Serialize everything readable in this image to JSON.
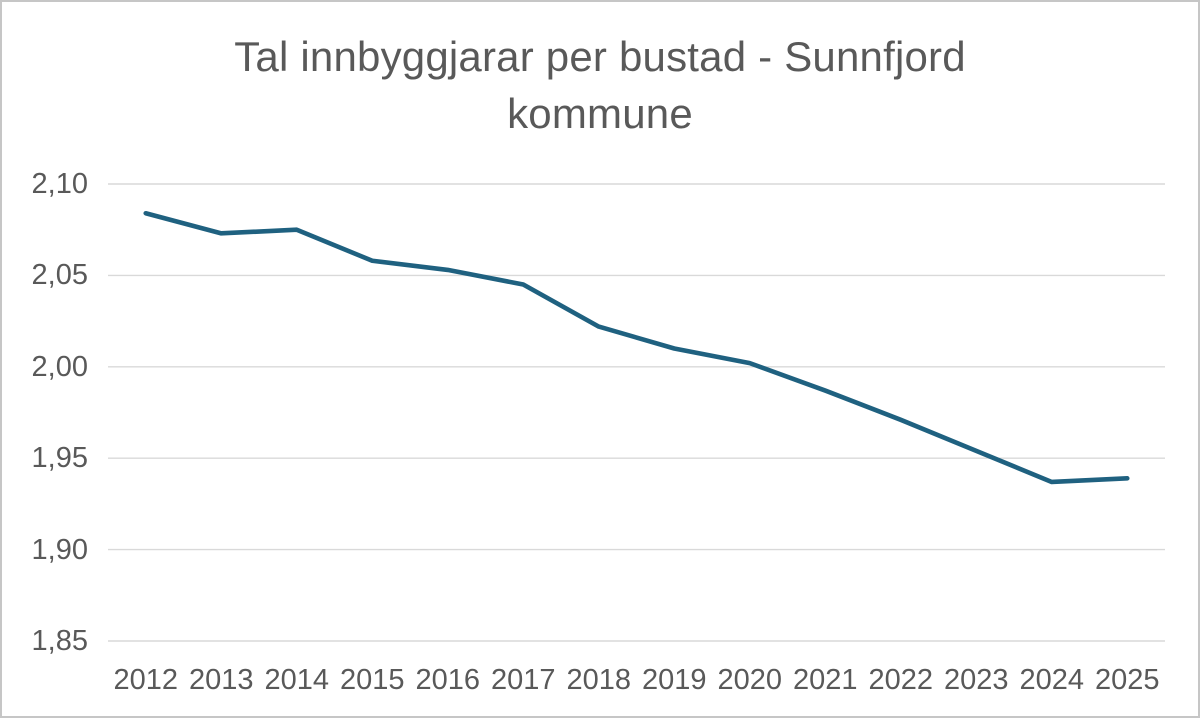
{
  "window": {
    "background_color": "#ffffff",
    "border_color": "#c6c6c6"
  },
  "chart": {
    "title_color": "#595959",
    "tick_label_color": "#595959",
    "gridline_color": "#d9d9d9",
    "line_color": "#1f6180"
  },
  "chart_data": {
    "type": "line",
    "title": "Tal innbyggjarar per bustad - Sunnfjord kommune",
    "categories": [
      "2012",
      "2013",
      "2014",
      "2015",
      "2016",
      "2017",
      "2018",
      "2019",
      "2020",
      "2021",
      "2022",
      "2023",
      "2024",
      "2025"
    ],
    "series": [
      {
        "name": "Tal innbyggjarar per bustad",
        "values": [
          2.084,
          2.073,
          2.075,
          2.058,
          2.053,
          2.045,
          2.022,
          2.01,
          2.002,
          1.987,
          1.971,
          1.954,
          1.937,
          1.939
        ]
      }
    ],
    "xlabel": "",
    "ylabel": "",
    "ylim": [
      1.85,
      2.1
    ],
    "yticks": [
      {
        "value": 2.1,
        "label": "2,10"
      },
      {
        "value": 2.05,
        "label": "2,05"
      },
      {
        "value": 2.0,
        "label": "2,00"
      },
      {
        "value": 1.95,
        "label": "1,95"
      },
      {
        "value": 1.9,
        "label": "1,90"
      },
      {
        "value": 1.85,
        "label": "1,85"
      }
    ],
    "grid": true,
    "legend": false,
    "decimal_separator": ","
  }
}
